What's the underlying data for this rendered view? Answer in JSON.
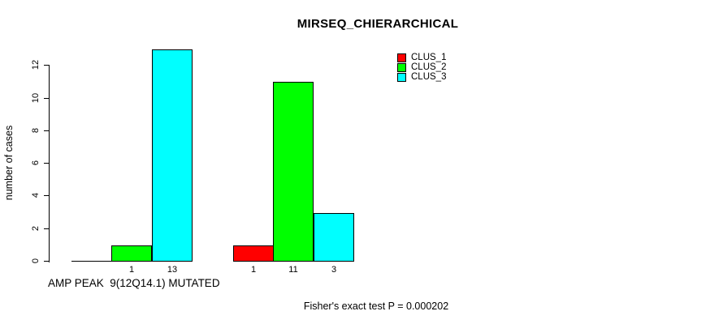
{
  "chart_data": {
    "type": "bar",
    "title": "MIRSEQ_CHIERARCHICAL",
    "ylabel": "number of cases",
    "xlabel": "AMP PEAK  9(12Q14.1) MUTATED",
    "ylim": [
      0,
      13
    ],
    "yticks": [
      0,
      2,
      4,
      6,
      8,
      10,
      12
    ],
    "grid": false,
    "legend_position": "top-right-inside",
    "groups": 2,
    "series": [
      {
        "name": "CLUS_1",
        "color": "#ff0000",
        "values": [
          0,
          1
        ]
      },
      {
        "name": "CLUS_2",
        "color": "#00ff00",
        "values": [
          1,
          11
        ]
      },
      {
        "name": "CLUS_3",
        "color": "#00ffff",
        "values": [
          13,
          3
        ]
      }
    ],
    "bar_count_labels": [
      [
        "",
        "1",
        "13"
      ],
      [
        "1",
        "11",
        "3"
      ]
    ],
    "annotation": "Fisher's exact test P = 0.000202"
  },
  "colors": {
    "clus_1": "#ff0000",
    "clus_2": "#00ff00",
    "clus_3": "#00ffff",
    "axis": "#000000",
    "background": "#ffffff"
  }
}
